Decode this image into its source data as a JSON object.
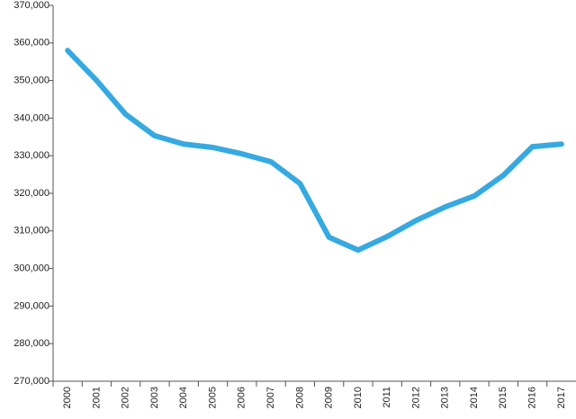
{
  "chart_data": {
    "type": "line",
    "categories": [
      "2000",
      "2001",
      "2002",
      "2003",
      "2004",
      "2005",
      "2006",
      "2007",
      "2008",
      "2009",
      "2010",
      "2011",
      "2012",
      "2013",
      "2014",
      "2015",
      "2016",
      "2017"
    ],
    "series": [
      {
        "color": "#36a9e1",
        "values": [
          358000,
          350000,
          341000,
          335300,
          333100,
          332200,
          330500,
          328400,
          322600,
          308300,
          304900,
          308500,
          312800,
          316400,
          319300,
          324800,
          332400,
          333100
        ]
      }
    ],
    "ylim": [
      270000,
      370000
    ],
    "yticks": [
      {
        "value": 270000,
        "label": "270,000"
      },
      {
        "value": 280000,
        "label": "280,000"
      },
      {
        "value": 290000,
        "label": "290,000"
      },
      {
        "value": 300000,
        "label": "300,000"
      },
      {
        "value": 310000,
        "label": "310,000"
      },
      {
        "value": 320000,
        "label": "320,000"
      },
      {
        "value": 330000,
        "label": "330,000"
      },
      {
        "value": 340000,
        "label": "340,000"
      },
      {
        "value": 350000,
        "label": "350,000"
      },
      {
        "value": 360000,
        "label": "360,000"
      },
      {
        "value": 370000,
        "label": "370,000"
      }
    ],
    "grid": false
  }
}
